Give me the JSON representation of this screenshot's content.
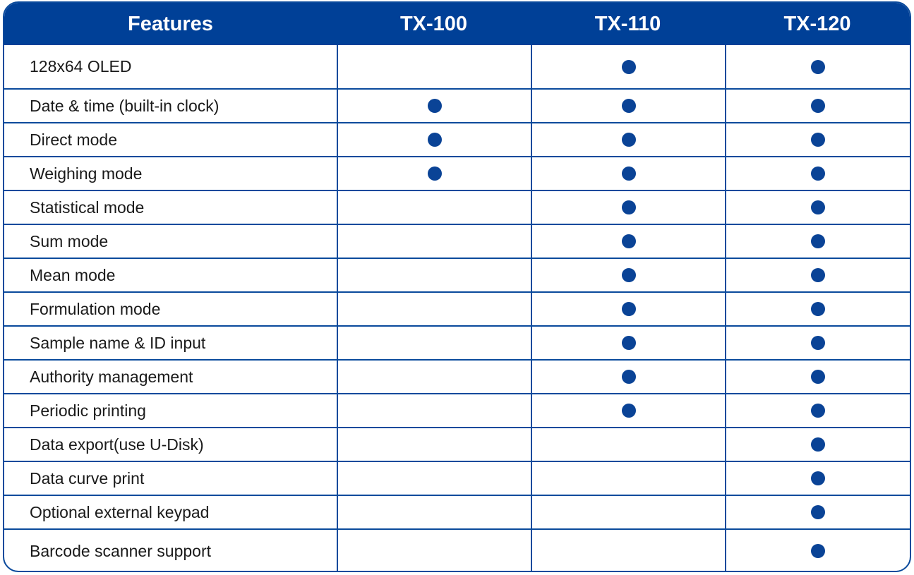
{
  "headers": [
    "Features",
    "TX-100",
    "TX-110",
    "TX-120"
  ],
  "accent_color": "#004097",
  "rows": [
    {
      "feature": "128x64 OLED",
      "support": [
        false,
        true,
        true
      ]
    },
    {
      "feature": "Date & time (built-in clock)",
      "support": [
        true,
        true,
        true
      ]
    },
    {
      "feature": "Direct mode",
      "support": [
        true,
        true,
        true
      ]
    },
    {
      "feature": "Weighing mode",
      "support": [
        true,
        true,
        true
      ]
    },
    {
      "feature": "Statistical mode",
      "support": [
        false,
        true,
        true
      ]
    },
    {
      "feature": "Sum mode",
      "support": [
        false,
        true,
        true
      ]
    },
    {
      "feature": "Mean mode",
      "support": [
        false,
        true,
        true
      ]
    },
    {
      "feature": "Formulation mode",
      "support": [
        false,
        true,
        true
      ]
    },
    {
      "feature": "Sample name & ID input",
      "support": [
        false,
        true,
        true
      ]
    },
    {
      "feature": "Authority management",
      "support": [
        false,
        true,
        true
      ]
    },
    {
      "feature": "Periodic printing",
      "support": [
        false,
        true,
        true
      ]
    },
    {
      "feature": "Data export(use U-Disk)",
      "support": [
        false,
        false,
        true
      ]
    },
    {
      "feature": "Data curve print",
      "support": [
        false,
        false,
        true
      ]
    },
    {
      "feature": "Optional external keypad",
      "support": [
        false,
        false,
        true
      ]
    },
    {
      "feature": "Barcode scanner support",
      "support": [
        false,
        false,
        true
      ]
    }
  ]
}
